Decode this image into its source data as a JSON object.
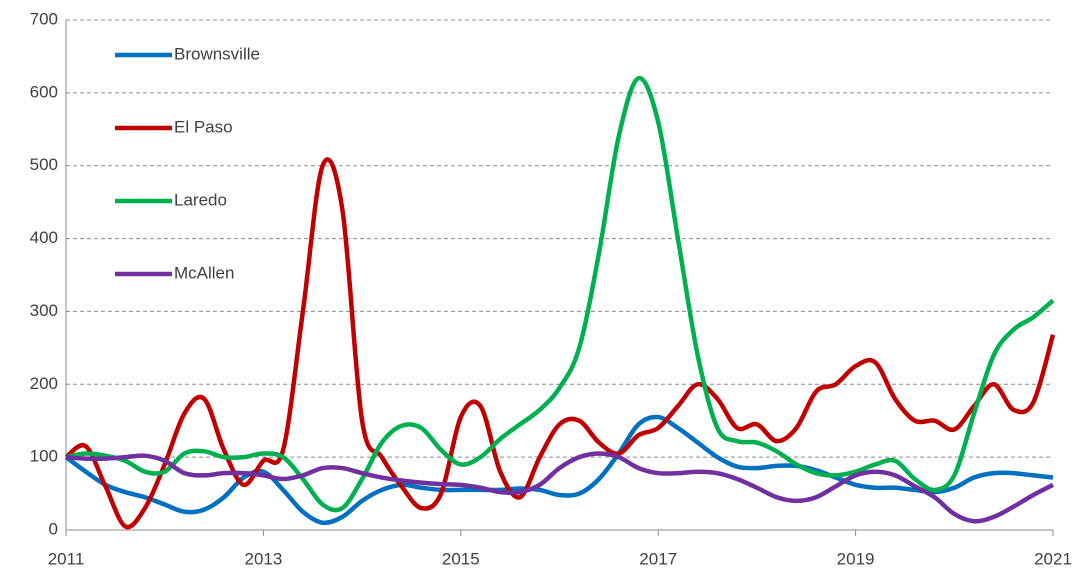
{
  "chart_data": {
    "type": "line",
    "x": [
      2011.0,
      2011.2,
      2011.4,
      2011.6,
      2011.8,
      2012.0,
      2012.2,
      2012.4,
      2012.6,
      2012.8,
      2013.0,
      2013.2,
      2013.4,
      2013.6,
      2013.8,
      2014.0,
      2014.2,
      2014.4,
      2014.6,
      2014.8,
      2015.0,
      2015.2,
      2015.4,
      2015.6,
      2015.8,
      2016.0,
      2016.2,
      2016.4,
      2016.6,
      2016.8,
      2017.0,
      2017.2,
      2017.4,
      2017.6,
      2017.8,
      2018.0,
      2018.2,
      2018.4,
      2018.6,
      2018.8,
      2019.0,
      2019.2,
      2019.4,
      2019.6,
      2019.8,
      2020.0,
      2020.2,
      2020.4,
      2020.6,
      2020.8,
      2021.0
    ],
    "series": [
      {
        "name": "Brownsville",
        "color": "#0070c0",
        "values": [
          100,
          80,
          62,
          52,
          45,
          35,
          25,
          28,
          45,
          72,
          80,
          55,
          25,
          10,
          18,
          40,
          55,
          62,
          58,
          55,
          55,
          55,
          55,
          57,
          55,
          48,
          50,
          70,
          105,
          145,
          155,
          140,
          120,
          100,
          87,
          85,
          88,
          88,
          82,
          72,
          62,
          58,
          58,
          55,
          52,
          58,
          72,
          78,
          78,
          75,
          72
        ]
      },
      {
        "name": "El Paso",
        "color": "#c00000",
        "values": [
          100,
          115,
          60,
          5,
          30,
          90,
          160,
          180,
          110,
          62,
          95,
          110,
          300,
          500,
          440,
          150,
          100,
          60,
          30,
          50,
          155,
          170,
          80,
          45,
          100,
          145,
          150,
          120,
          105,
          130,
          140,
          170,
          200,
          180,
          140,
          145,
          122,
          140,
          190,
          200,
          225,
          230,
          180,
          150,
          150,
          138,
          170,
          200,
          165,
          175,
          268
        ]
      },
      {
        "name": "Laredo",
        "color": "#00b050",
        "values": [
          100,
          105,
          102,
          95,
          80,
          80,
          105,
          108,
          100,
          100,
          105,
          100,
          70,
          35,
          30,
          70,
          120,
          143,
          140,
          110,
          90,
          100,
          125,
          145,
          165,
          195,
          250,
          380,
          540,
          620,
          560,
          400,
          240,
          140,
          122,
          120,
          108,
          90,
          78,
          75,
          80,
          90,
          95,
          70,
          55,
          75,
          160,
          240,
          275,
          292,
          315
        ]
      },
      {
        "name": "McAllen",
        "color": "#7030a0",
        "values": [
          100,
          98,
          98,
          100,
          102,
          95,
          78,
          75,
          78,
          78,
          75,
          70,
          75,
          85,
          85,
          78,
          72,
          68,
          65,
          63,
          62,
          58,
          52,
          52,
          62,
          85,
          100,
          105,
          100,
          85,
          78,
          78,
          80,
          78,
          70,
          58,
          45,
          40,
          45,
          60,
          75,
          80,
          75,
          60,
          45,
          22,
          12,
          18,
          32,
          48,
          62
        ]
      }
    ],
    "xlim": [
      2011,
      2021
    ],
    "xticks": [
      2011,
      2013,
      2015,
      2017,
      2019,
      2021
    ],
    "ylim": [
      0,
      700
    ],
    "yticks": [
      0,
      100,
      200,
      300,
      400,
      500,
      600,
      700
    ],
    "grid": true,
    "legend": "top-left"
  }
}
